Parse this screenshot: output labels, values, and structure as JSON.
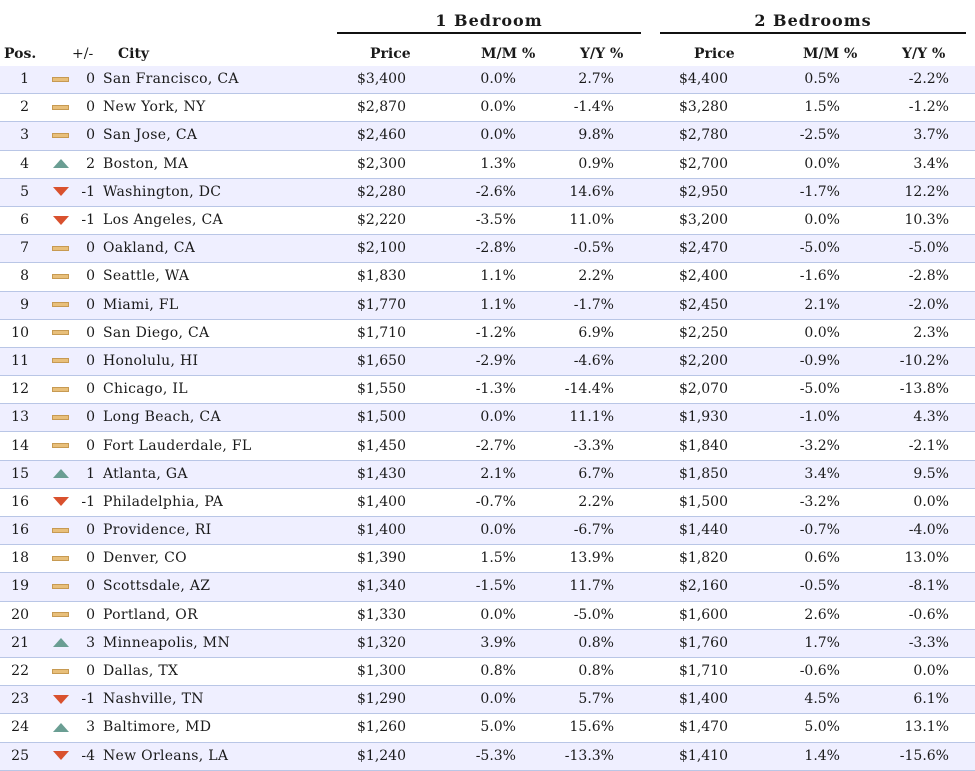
{
  "groups": {
    "one_bedroom": "1 Bedroom",
    "two_bedrooms": "2 Bedrooms"
  },
  "columns": {
    "pos": "Pos.",
    "change": "+/-",
    "city": "City",
    "price1": "Price",
    "mm1": "M/M %",
    "yy1": "Y/Y %",
    "price2": "Price",
    "mm2": "M/M %",
    "yy2": "Y/Y %"
  },
  "trend_colors": {
    "up": "#6a9e93",
    "down": "#d9512e",
    "flat": "#e8bf7a"
  },
  "rows": [
    {
      "pos": "1",
      "trend": "flat",
      "chg": "0",
      "city": "San Francisco, CA",
      "p1": "$3,400",
      "mm1": "0.0%",
      "yy1": "2.7%",
      "p2": "$4,400",
      "mm2": "0.5%",
      "yy2": "-2.2%"
    },
    {
      "pos": "2",
      "trend": "flat",
      "chg": "0",
      "city": "New York, NY",
      "p1": "$2,870",
      "mm1": "0.0%",
      "yy1": "-1.4%",
      "p2": "$3,280",
      "mm2": "1.5%",
      "yy2": "-1.2%"
    },
    {
      "pos": "3",
      "trend": "flat",
      "chg": "0",
      "city": "San Jose, CA",
      "p1": "$2,460",
      "mm1": "0.0%",
      "yy1": "9.8%",
      "p2": "$2,780",
      "mm2": "-2.5%",
      "yy2": "3.7%"
    },
    {
      "pos": "4",
      "trend": "up",
      "chg": "2",
      "city": "Boston, MA",
      "p1": "$2,300",
      "mm1": "1.3%",
      "yy1": "0.9%",
      "p2": "$2,700",
      "mm2": "0.0%",
      "yy2": "3.4%"
    },
    {
      "pos": "5",
      "trend": "down",
      "chg": "-1",
      "city": "Washington, DC",
      "p1": "$2,280",
      "mm1": "-2.6%",
      "yy1": "14.6%",
      "p2": "$2,950",
      "mm2": "-1.7%",
      "yy2": "12.2%"
    },
    {
      "pos": "6",
      "trend": "down",
      "chg": "-1",
      "city": "Los Angeles, CA",
      "p1": "$2,220",
      "mm1": "-3.5%",
      "yy1": "11.0%",
      "p2": "$3,200",
      "mm2": "0.0%",
      "yy2": "10.3%"
    },
    {
      "pos": "7",
      "trend": "flat",
      "chg": "0",
      "city": "Oakland, CA",
      "p1": "$2,100",
      "mm1": "-2.8%",
      "yy1": "-0.5%",
      "p2": "$2,470",
      "mm2": "-5.0%",
      "yy2": "-5.0%"
    },
    {
      "pos": "8",
      "trend": "flat",
      "chg": "0",
      "city": "Seattle, WA",
      "p1": "$1,830",
      "mm1": "1.1%",
      "yy1": "2.2%",
      "p2": "$2,400",
      "mm2": "-1.6%",
      "yy2": "-2.8%"
    },
    {
      "pos": "9",
      "trend": "flat",
      "chg": "0",
      "city": "Miami, FL",
      "p1": "$1,770",
      "mm1": "1.1%",
      "yy1": "-1.7%",
      "p2": "$2,450",
      "mm2": "2.1%",
      "yy2": "-2.0%"
    },
    {
      "pos": "10",
      "trend": "flat",
      "chg": "0",
      "city": "San Diego, CA",
      "p1": "$1,710",
      "mm1": "-1.2%",
      "yy1": "6.9%",
      "p2": "$2,250",
      "mm2": "0.0%",
      "yy2": "2.3%"
    },
    {
      "pos": "11",
      "trend": "flat",
      "chg": "0",
      "city": "Honolulu, HI",
      "p1": "$1,650",
      "mm1": "-2.9%",
      "yy1": "-4.6%",
      "p2": "$2,200",
      "mm2": "-0.9%",
      "yy2": "-10.2%"
    },
    {
      "pos": "12",
      "trend": "flat",
      "chg": "0",
      "city": "Chicago, IL",
      "p1": "$1,550",
      "mm1": "-1.3%",
      "yy1": "-14.4%",
      "p2": "$2,070",
      "mm2": "-5.0%",
      "yy2": "-13.8%"
    },
    {
      "pos": "13",
      "trend": "flat",
      "chg": "0",
      "city": "Long Beach, CA",
      "p1": "$1,500",
      "mm1": "0.0%",
      "yy1": "11.1%",
      "p2": "$1,930",
      "mm2": "-1.0%",
      "yy2": "4.3%"
    },
    {
      "pos": "14",
      "trend": "flat",
      "chg": "0",
      "city": "Fort Lauderdale, FL",
      "p1": "$1,450",
      "mm1": "-2.7%",
      "yy1": "-3.3%",
      "p2": "$1,840",
      "mm2": "-3.2%",
      "yy2": "-2.1%"
    },
    {
      "pos": "15",
      "trend": "up",
      "chg": "1",
      "city": "Atlanta, GA",
      "p1": "$1,430",
      "mm1": "2.1%",
      "yy1": "6.7%",
      "p2": "$1,850",
      "mm2": "3.4%",
      "yy2": "9.5%"
    },
    {
      "pos": "16",
      "trend": "down",
      "chg": "-1",
      "city": "Philadelphia, PA",
      "p1": "$1,400",
      "mm1": "-0.7%",
      "yy1": "2.2%",
      "p2": "$1,500",
      "mm2": "-3.2%",
      "yy2": "0.0%"
    },
    {
      "pos": "16",
      "trend": "flat",
      "chg": "0",
      "city": "Providence, RI",
      "p1": "$1,400",
      "mm1": "0.0%",
      "yy1": "-6.7%",
      "p2": "$1,440",
      "mm2": "-0.7%",
      "yy2": "-4.0%"
    },
    {
      "pos": "18",
      "trend": "flat",
      "chg": "0",
      "city": "Denver, CO",
      "p1": "$1,390",
      "mm1": "1.5%",
      "yy1": "13.9%",
      "p2": "$1,820",
      "mm2": "0.6%",
      "yy2": "13.0%"
    },
    {
      "pos": "19",
      "trend": "flat",
      "chg": "0",
      "city": "Scottsdale, AZ",
      "p1": "$1,340",
      "mm1": "-1.5%",
      "yy1": "11.7%",
      "p2": "$2,160",
      "mm2": "-0.5%",
      "yy2": "-8.1%"
    },
    {
      "pos": "20",
      "trend": "flat",
      "chg": "0",
      "city": "Portland, OR",
      "p1": "$1,330",
      "mm1": "0.0%",
      "yy1": "-5.0%",
      "p2": "$1,600",
      "mm2": "2.6%",
      "yy2": "-0.6%"
    },
    {
      "pos": "21",
      "trend": "up",
      "chg": "3",
      "city": "Minneapolis, MN",
      "p1": "$1,320",
      "mm1": "3.9%",
      "yy1": "0.8%",
      "p2": "$1,760",
      "mm2": "1.7%",
      "yy2": "-3.3%"
    },
    {
      "pos": "22",
      "trend": "flat",
      "chg": "0",
      "city": "Dallas, TX",
      "p1": "$1,300",
      "mm1": "0.8%",
      "yy1": "0.8%",
      "p2": "$1,710",
      "mm2": "-0.6%",
      "yy2": "0.0%"
    },
    {
      "pos": "23",
      "trend": "down",
      "chg": "-1",
      "city": "Nashville, TN",
      "p1": "$1,290",
      "mm1": "0.0%",
      "yy1": "5.7%",
      "p2": "$1,400",
      "mm2": "4.5%",
      "yy2": "6.1%"
    },
    {
      "pos": "24",
      "trend": "up",
      "chg": "3",
      "city": "Baltimore, MD",
      "p1": "$1,260",
      "mm1": "5.0%",
      "yy1": "15.6%",
      "p2": "$1,470",
      "mm2": "5.0%",
      "yy2": "13.1%"
    },
    {
      "pos": "25",
      "trend": "down",
      "chg": "-4",
      "city": "New Orleans, LA",
      "p1": "$1,240",
      "mm1": "-5.3%",
      "yy1": "-13.3%",
      "p2": "$1,410",
      "mm2": "1.4%",
      "yy2": "-15.6%"
    }
  ]
}
